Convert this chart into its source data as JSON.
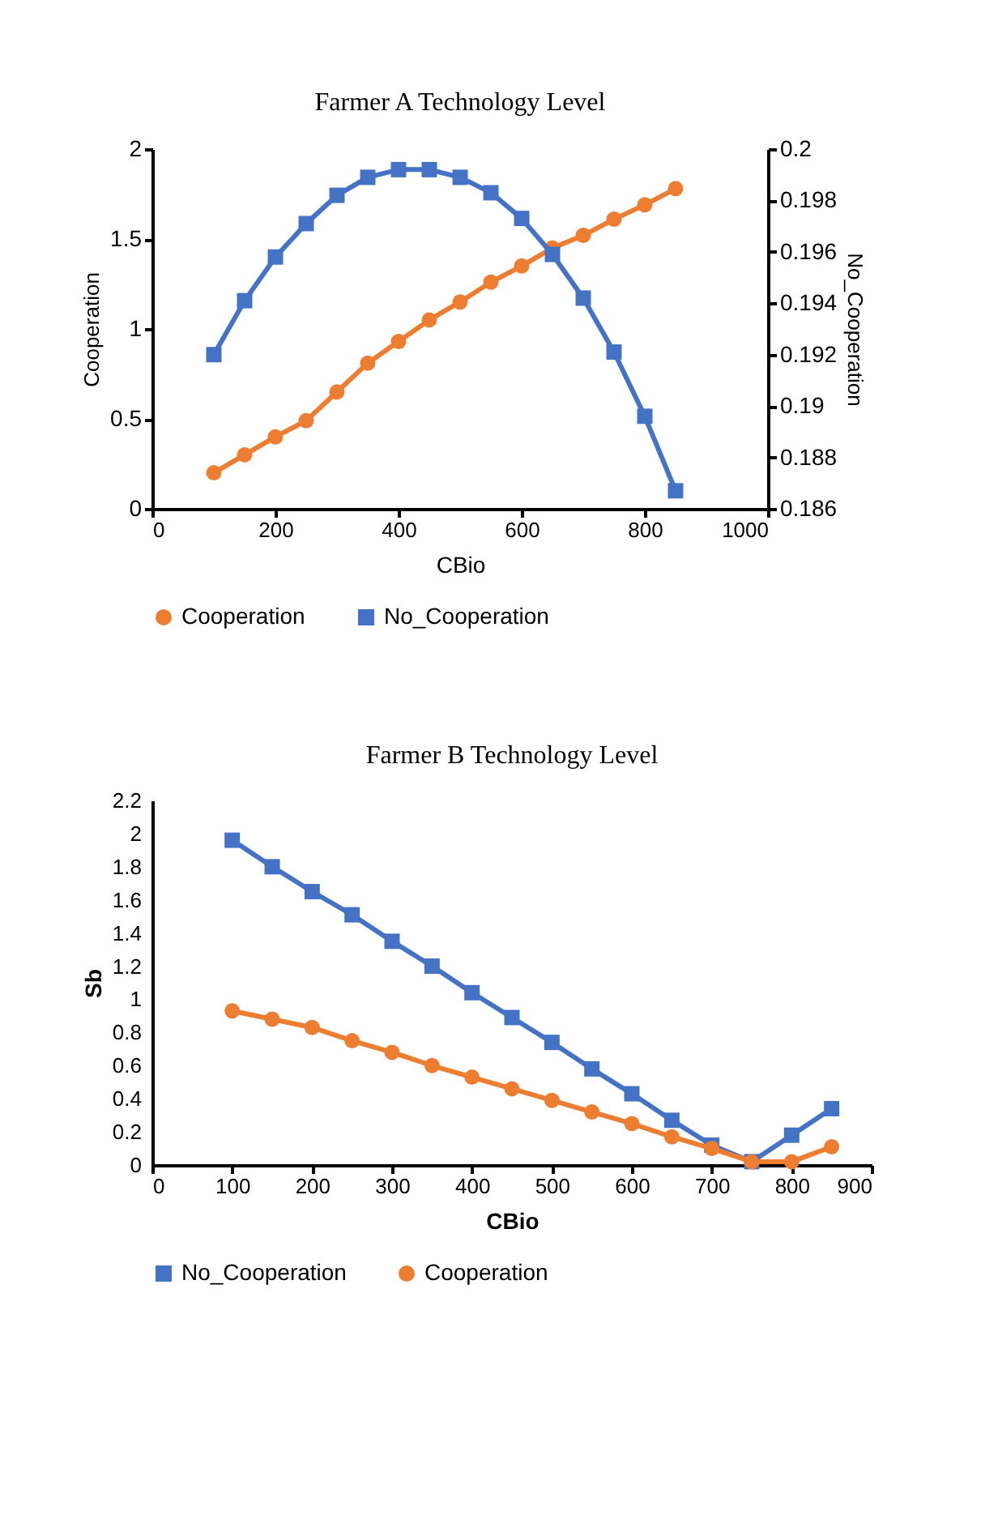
{
  "chart_data": [
    {
      "type": "line",
      "title": "Farmer A Technology Level",
      "xlabel": "CBio",
      "ylabel": "Cooperation",
      "y2label": "No_Cooperation",
      "x": [
        100,
        150,
        200,
        250,
        300,
        350,
        400,
        450,
        500,
        550,
        600,
        650,
        700,
        750,
        800,
        850
      ],
      "xlim": [
        0,
        1000
      ],
      "xticks": [
        0,
        200,
        400,
        600,
        800,
        1000
      ],
      "ylim": [
        0,
        2
      ],
      "yticks": [
        0,
        0.5,
        1,
        1.5,
        2
      ],
      "y2lim": [
        0.186,
        0.2
      ],
      "y2ticks": [
        0.186,
        0.188,
        0.19,
        0.192,
        0.194,
        0.196,
        0.198,
        0.2
      ],
      "legend": "bottom",
      "grid": false,
      "line_style": "solid",
      "series": [
        {
          "name": "Cooperation",
          "color": "#ed7d31",
          "marker": "circle",
          "values": [
            0.2,
            0.3,
            0.4,
            0.49,
            0.65,
            0.81,
            0.93,
            1.05,
            1.15,
            1.26,
            1.35,
            1.45,
            1.52,
            1.61,
            1.69,
            1.78
          ]
        },
        {
          "name": "No_Cooperation",
          "color": "#4472c4",
          "marker": "square",
          "axis": "y2",
          "values": [
            0.192,
            0.1941,
            0.1958,
            0.1971,
            0.1982,
            0.1989,
            0.1992,
            0.1992,
            0.1989,
            0.1983,
            0.1973,
            0.1959,
            0.1942,
            0.1921,
            0.1896,
            0.1867
          ]
        }
      ]
    },
    {
      "type": "line",
      "title": "Farmer B Technology Level",
      "xlabel": "CBio",
      "ylabel": "Sb",
      "x": [
        100,
        150,
        200,
        250,
        300,
        350,
        400,
        450,
        500,
        550,
        600,
        650,
        700,
        750,
        800,
        850
      ],
      "xlim": [
        0,
        900
      ],
      "xticks": [
        0,
        100,
        200,
        300,
        400,
        500,
        600,
        700,
        800,
        900
      ],
      "ylim": [
        0,
        2.2
      ],
      "yticks": [
        0,
        0.2,
        0.4,
        0.6,
        0.8,
        1,
        1.2,
        1.4,
        1.6,
        1.8,
        2,
        2.2
      ],
      "legend": "bottom",
      "grid": false,
      "line_style": "solid",
      "series": [
        {
          "name": "No_Cooperation",
          "color": "#4472c4",
          "marker": "square",
          "values": [
            1.96,
            1.8,
            1.65,
            1.51,
            1.35,
            1.2,
            1.04,
            0.89,
            0.74,
            0.58,
            0.43,
            0.27,
            0.12,
            0.02,
            0.18,
            0.34
          ]
        },
        {
          "name": "Cooperation",
          "color": "#ed7d31",
          "marker": "circle",
          "values": [
            0.93,
            0.88,
            0.83,
            0.75,
            0.68,
            0.6,
            0.53,
            0.46,
            0.39,
            0.32,
            0.25,
            0.17,
            0.1,
            0.02,
            0.02,
            0.11
          ]
        }
      ]
    }
  ]
}
